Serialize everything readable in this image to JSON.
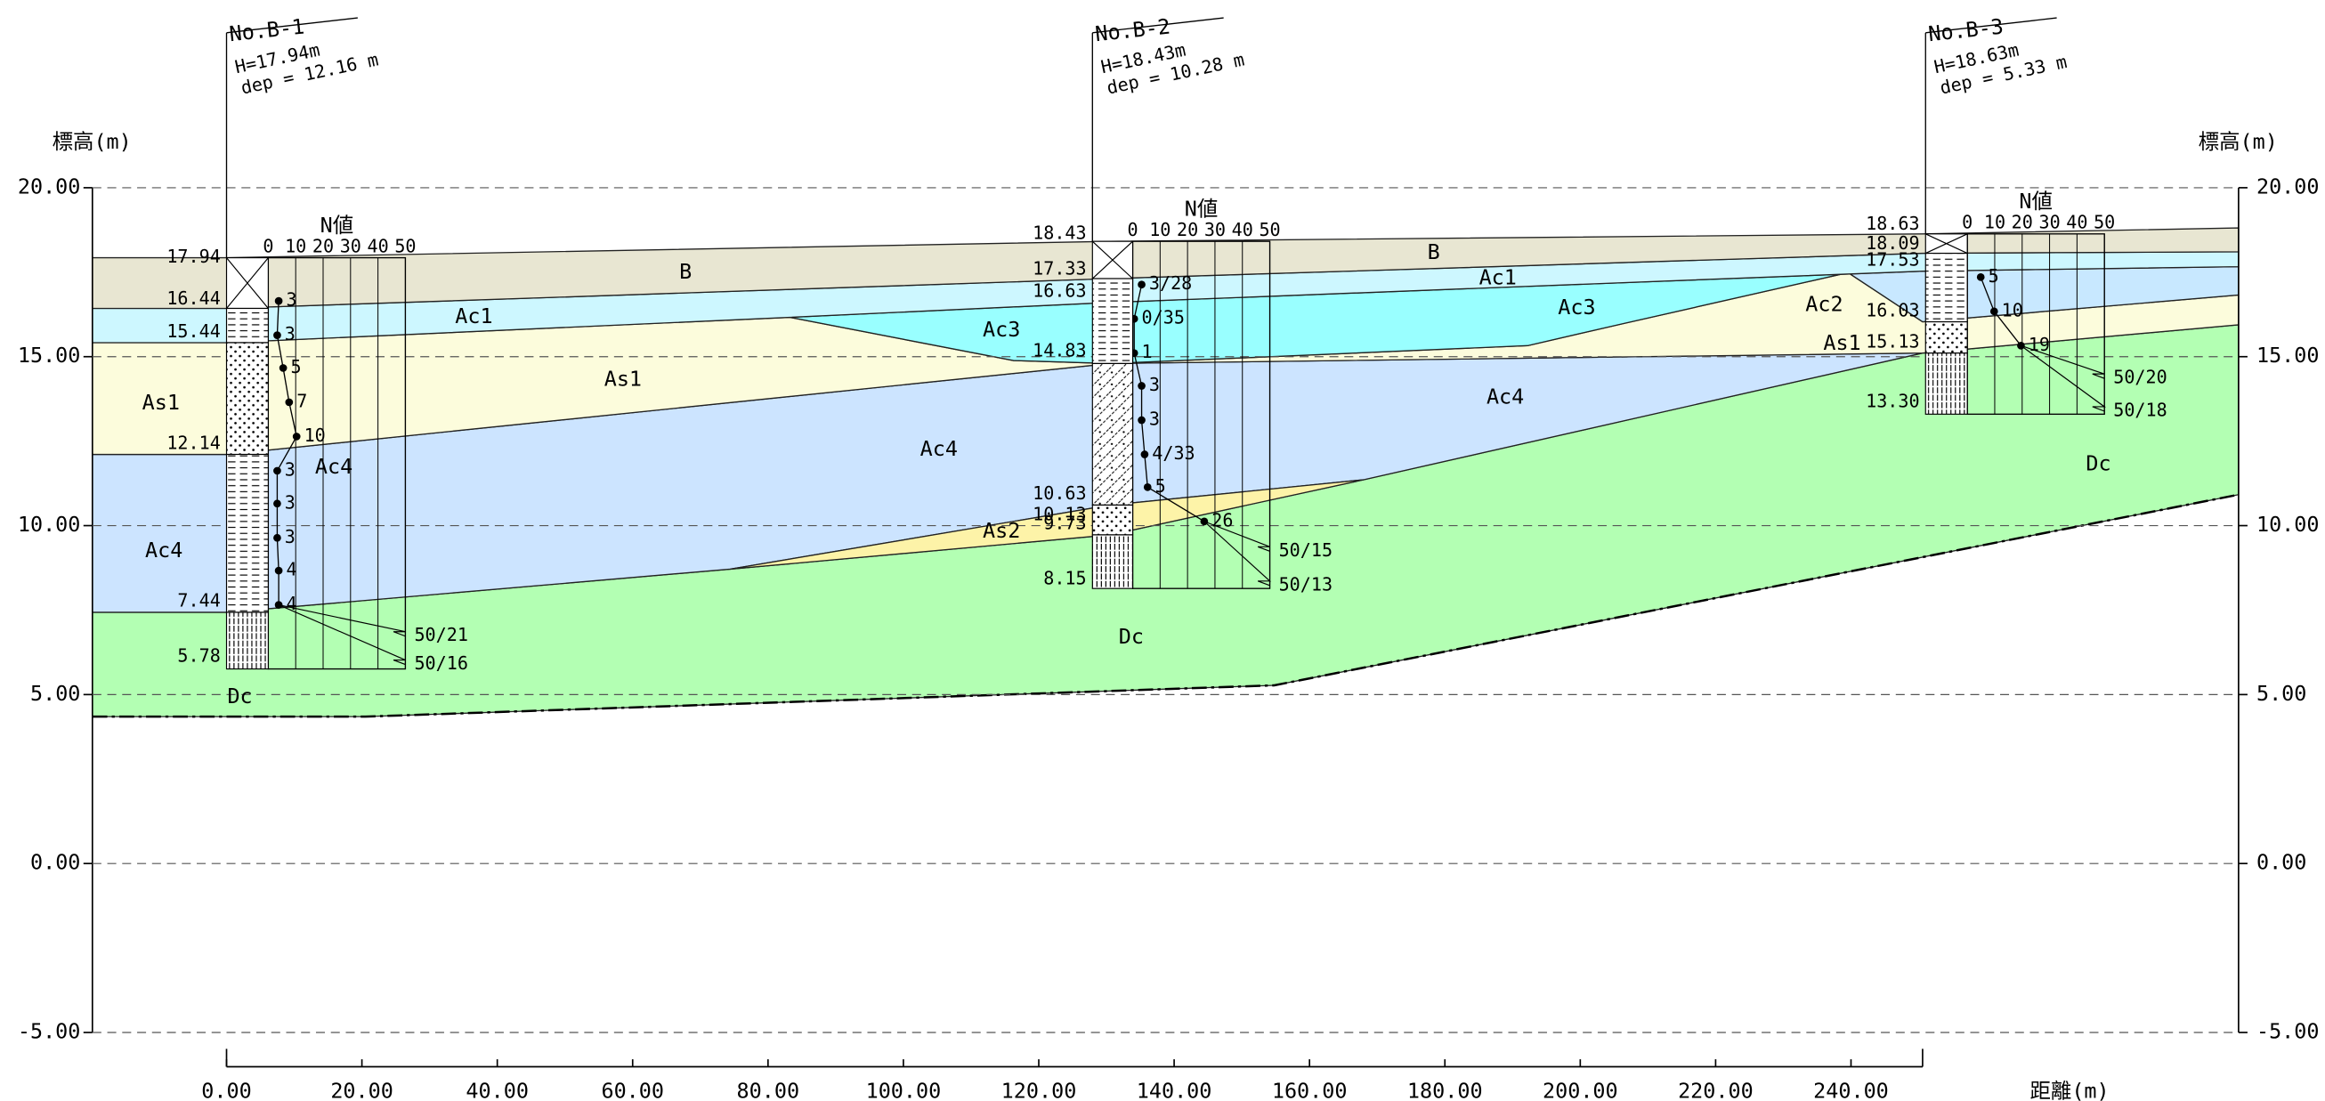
{
  "axis": {
    "left_title": "標高(m)",
    "right_title": "標高(m)",
    "distance_title": "距離(m)",
    "elevation_ticks": [
      "20.00",
      "15.00",
      "10.00",
      "5.00",
      "0.00",
      "-5.00"
    ],
    "distance_ticks": [
      "0.00",
      "20.00",
      "40.00",
      "60.00",
      "80.00",
      "100.00",
      "120.00",
      "140.00",
      "160.00",
      "180.00",
      "200.00",
      "220.00",
      "240.00"
    ]
  },
  "boreholes": [
    {
      "name": "No.B-1",
      "height": "H=17.94m",
      "depth": "dep = 12.16 m",
      "n_title": "N値",
      "n_scale": [
        "0",
        "10",
        "20",
        "30",
        "40",
        "50"
      ],
      "elevations": [
        "17.94",
        "16.44",
        "15.44",
        "12.14",
        "7.44",
        "5.78"
      ],
      "n_values": [
        "3",
        "3",
        "5",
        "7",
        "10",
        "3",
        "3",
        "3",
        "4",
        "4",
        "50/21",
        "50/16"
      ]
    },
    {
      "name": "No.B-2",
      "height": "H=18.43m",
      "depth": "dep = 10.28 m",
      "n_title": "N値",
      "n_scale": [
        "0",
        "10",
        "20",
        "30",
        "40",
        "50"
      ],
      "elevations": [
        "18.43",
        "17.33",
        "16.63",
        "14.83",
        "10.63",
        "10.13",
        "9.73",
        "8.15"
      ],
      "n_values": [
        "3/28",
        "0/35",
        "1",
        "3",
        "3",
        "4/33",
        "5",
        "26",
        "50/15",
        "50/13"
      ]
    },
    {
      "name": "No.B-3",
      "height": "H=18.63m",
      "depth": "dep = 5.33 m",
      "n_title": "N値",
      "n_scale": [
        "0",
        "10",
        "20",
        "30",
        "40",
        "50"
      ],
      "elevations": [
        "18.63",
        "18.09",
        "17.53",
        "16.03",
        "15.13",
        "13.30"
      ],
      "n_values": [
        "5",
        "10",
        "19",
        "50/20",
        "50/18"
      ]
    }
  ],
  "layer_labels": [
    "B",
    "B",
    "Ac1",
    "Ac1",
    "Ac3",
    "Ac3",
    "Ac2",
    "As1",
    "As1",
    "As1",
    "Ac4",
    "Ac4",
    "Ac4",
    "Ac4",
    "As2",
    "Dc",
    "Dc",
    "Dc"
  ]
}
